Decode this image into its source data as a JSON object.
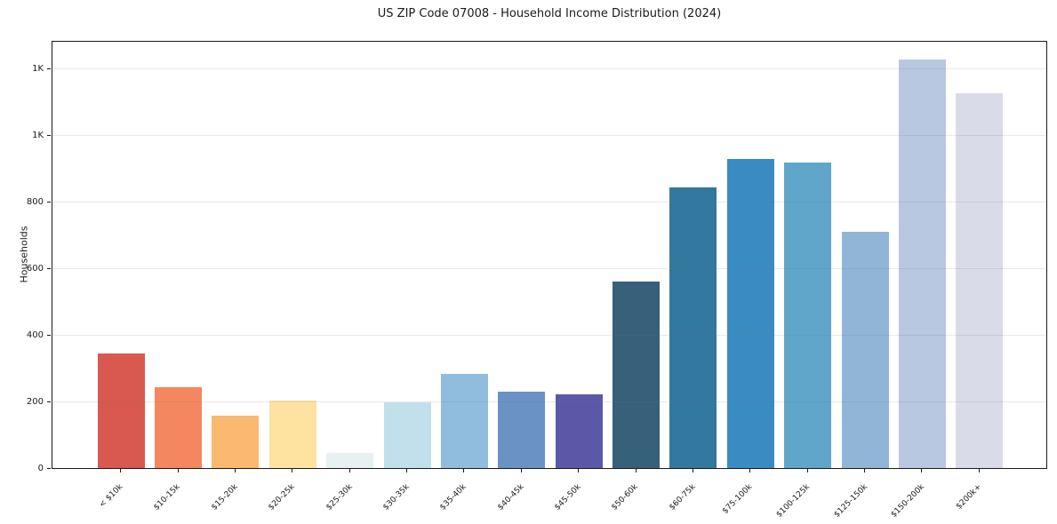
{
  "figure": {
    "background_color": "#ffffff"
  },
  "chart_data": {
    "type": "bar",
    "title": "US ZIP Code 07008 - Household Income Distribution (2024)",
    "xlabel": "",
    "ylabel": "Households",
    "legend": "none",
    "grid": "horizontal gridlines on, light gray, visible over bars",
    "x_tick_label_rotation_deg": 45,
    "ylim": [
      0,
      1285
    ],
    "yticks": {
      "values": [
        0,
        200,
        400,
        600,
        800,
        1000,
        1200
      ],
      "labels": [
        "0",
        "200",
        "400",
        "600",
        "800",
        "1K",
        "1K"
      ]
    },
    "categories": [
      "< $10k",
      "$10-15k",
      "$15-20k",
      "$20-25k",
      "$25-30k",
      "$30-35k",
      "$35-40k",
      "$40-45k",
      "$45-50k",
      "$50-60k",
      "$60-75k",
      "$75-100k",
      "$100-125k",
      "$125-150k",
      "$150-200k",
      "$200k+"
    ],
    "values": [
      345,
      243,
      157,
      202,
      45,
      198,
      283,
      230,
      221,
      560,
      843,
      929,
      918,
      708,
      1226,
      1126
    ],
    "bar_colors": [
      "#d95850",
      "#f4875f",
      "#fab871",
      "#fde2a0",
      "#e7f1f1",
      "#c2e0eb",
      "#90bcdd",
      "#6a92c5",
      "#5c58a8",
      "#37607a",
      "#33789e",
      "#3a8bc2",
      "#5fa6ca",
      "#90b5d7",
      "#b8c8e0",
      "#d9dbe8"
    ],
    "axis_color": "#1a1a1a",
    "gridline_color": "rgba(120,120,120,0.16)"
  }
}
